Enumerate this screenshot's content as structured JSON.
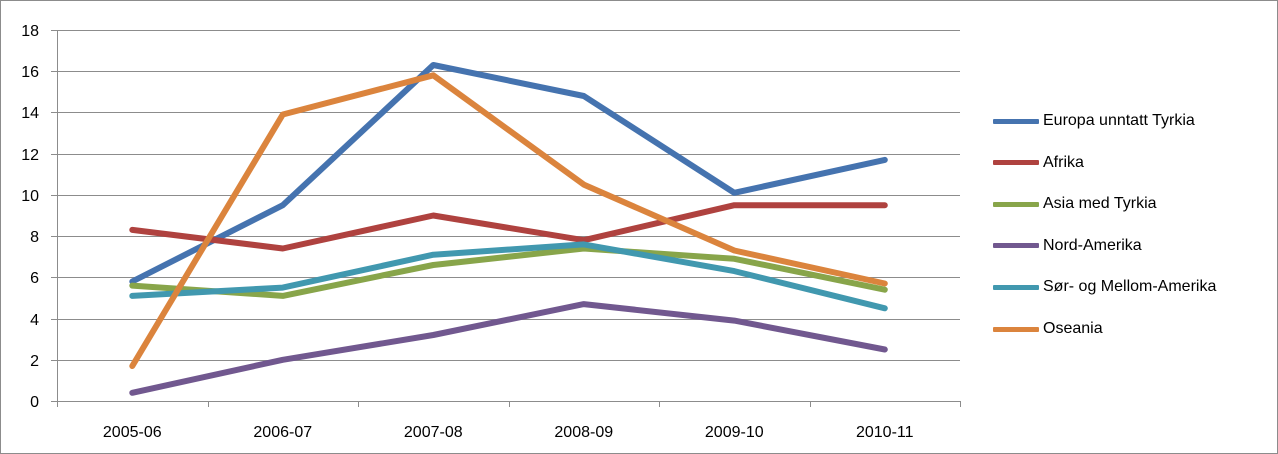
{
  "chart_data": {
    "type": "line",
    "title": "",
    "xlabel": "",
    "ylabel": "",
    "categories": [
      "2005-06",
      "2006-07",
      "2007-08",
      "2008-09",
      "2009-10",
      "2010-11"
    ],
    "ylim": [
      0,
      18
    ],
    "yticks": [
      0,
      2,
      4,
      6,
      8,
      10,
      12,
      14,
      16,
      18
    ],
    "grid": "horizontal",
    "legend_position": "right",
    "series": [
      {
        "name": "Europa unntatt Tyrkia",
        "color": "#4573AF",
        "values": [
          5.8,
          9.5,
          16.3,
          14.8,
          10.1,
          11.7
        ]
      },
      {
        "name": "Afrika",
        "color": "#AF423F",
        "values": [
          8.3,
          7.4,
          9.0,
          7.8,
          9.5,
          9.5
        ]
      },
      {
        "name": "Asia med Tyrkia",
        "color": "#88A54A",
        "values": [
          5.6,
          5.1,
          6.6,
          7.4,
          6.9,
          5.4
        ]
      },
      {
        "name": "Nord-Amerika",
        "color": "#71588F",
        "values": [
          0.4,
          2.0,
          3.2,
          4.7,
          3.9,
          2.5
        ]
      },
      {
        "name": "Sør- og Mellom-Amerika",
        "color": "#4198AF",
        "values": [
          5.1,
          5.5,
          7.1,
          7.6,
          6.3,
          4.5
        ]
      },
      {
        "name": "Oseania",
        "color": "#DB843D",
        "values": [
          1.7,
          13.9,
          15.8,
          10.5,
          7.3,
          5.7
        ]
      }
    ]
  }
}
